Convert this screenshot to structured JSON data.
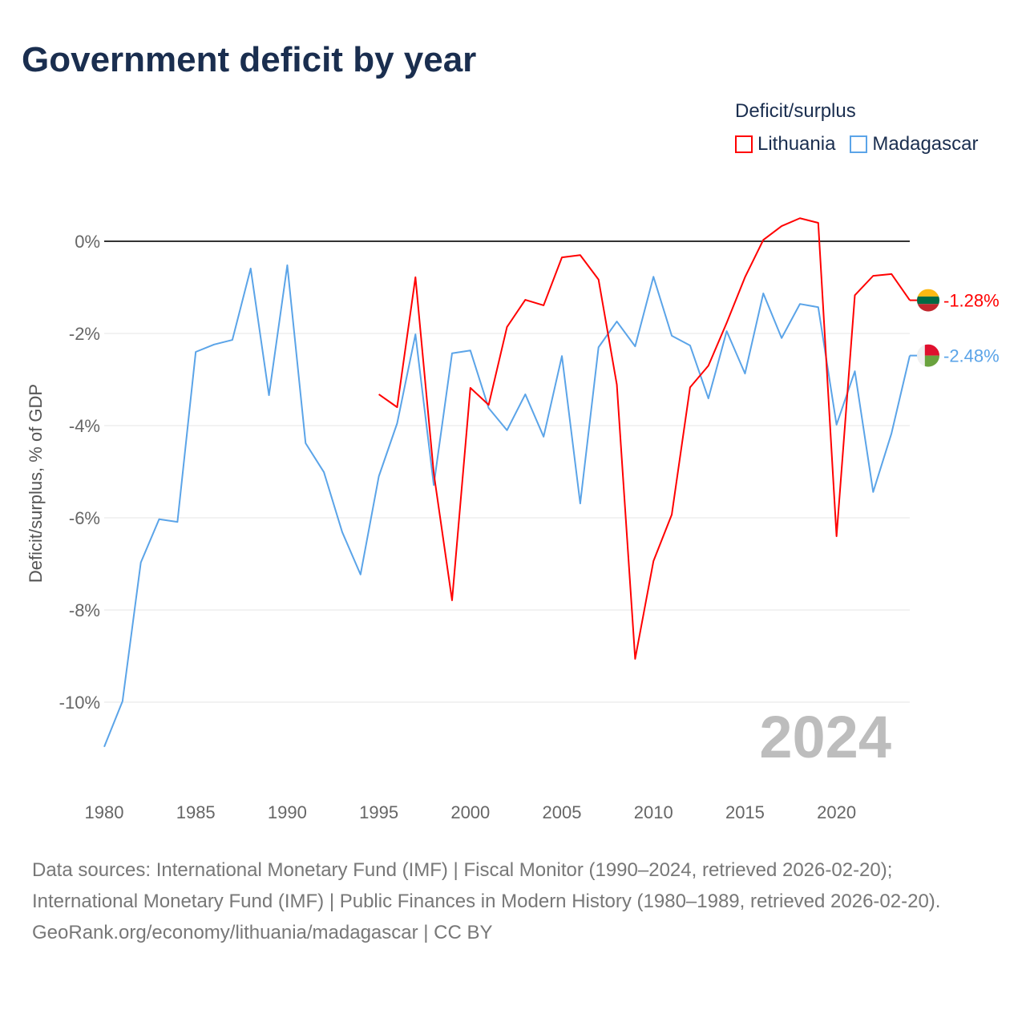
{
  "title": "Government deficit by year",
  "chart_data": {
    "type": "line",
    "title": "Government deficit by year",
    "xlabel": "",
    "ylabel": "Deficit/surplus, % of GDP",
    "xlim": [
      1980,
      2024
    ],
    "ylim": [
      -11,
      0.6
    ],
    "x_ticks": [
      1980,
      1985,
      1990,
      1995,
      2000,
      2005,
      2010,
      2015,
      2020
    ],
    "x_tick_labels": [
      "1980",
      "1985",
      "1990",
      "1995",
      "2000",
      "2005",
      "2010",
      "2015",
      "2020"
    ],
    "y_ticks": [
      0,
      -2,
      -4,
      -6,
      -8,
      -10
    ],
    "y_tick_labels": [
      "0%",
      "-2%",
      "-4%",
      "-6%",
      "-8%",
      "-10%"
    ],
    "legend_title": "Deficit/surplus",
    "legend_position": "top-right",
    "watermark_year": "2024",
    "series": [
      {
        "name": "Lithuania",
        "color": "#ff0000",
        "end_label": "-1.28%",
        "x": [
          1995,
          1996,
          1997,
          1998,
          1999,
          2000,
          2001,
          2002,
          2003,
          2004,
          2005,
          2006,
          2007,
          2008,
          2009,
          2010,
          2011,
          2012,
          2013,
          2014,
          2015,
          2016,
          2017,
          2018,
          2019,
          2020,
          2021,
          2022,
          2023,
          2024
        ],
        "values": [
          -3.32,
          -3.6,
          -0.78,
          -5.03,
          -7.79,
          -3.18,
          -3.55,
          -1.86,
          -1.27,
          -1.39,
          -0.35,
          -0.3,
          -0.83,
          -3.11,
          -9.06,
          -6.94,
          -5.93,
          -3.17,
          -2.7,
          -1.77,
          -0.78,
          0.03,
          0.33,
          0.5,
          0.4,
          -6.4,
          -1.17,
          -0.75,
          -0.71,
          -1.28
        ]
      },
      {
        "name": "Madagascar",
        "color": "#5ba4e8",
        "end_label": "-2.48%",
        "x": [
          1980,
          1981,
          1982,
          1983,
          1984,
          1985,
          1986,
          1987,
          1988,
          1989,
          1990,
          1991,
          1992,
          1993,
          1994,
          1995,
          1996,
          1997,
          1998,
          1999,
          2000,
          2001,
          2002,
          2003,
          2004,
          2005,
          2006,
          2007,
          2008,
          2009,
          2010,
          2011,
          2012,
          2013,
          2014,
          2015,
          2016,
          2017,
          2018,
          2019,
          2020,
          2021,
          2022,
          2023,
          2024
        ],
        "values": [
          -10.97,
          -9.98,
          -6.97,
          -6.03,
          -6.09,
          -2.4,
          -2.24,
          -2.14,
          -0.59,
          -3.34,
          -0.52,
          -4.38,
          -5.01,
          -6.31,
          -7.23,
          -5.1,
          -3.95,
          -2.02,
          -5.29,
          -2.43,
          -2.37,
          -3.62,
          -4.1,
          -3.32,
          -4.24,
          -2.49,
          -5.69,
          -2.3,
          -1.74,
          -2.28,
          -0.77,
          -2.05,
          -2.26,
          -3.41,
          -1.95,
          -2.87,
          -1.13,
          -2.1,
          -1.36,
          -1.43,
          -3.98,
          -2.82,
          -5.44,
          -4.17,
          -2.48
        ]
      }
    ]
  },
  "footer": {
    "sources": "Data sources: International Monetary Fund (IMF) | Fiscal Monitor (1990–2024, retrieved 2026-02-20); International Monetary Fund (IMF) | Public Finances in Modern History (1980–1989, retrieved 2026-02-20).",
    "credit": "GeoRank.org/economy/lithuania/madagascar | CC BY"
  }
}
